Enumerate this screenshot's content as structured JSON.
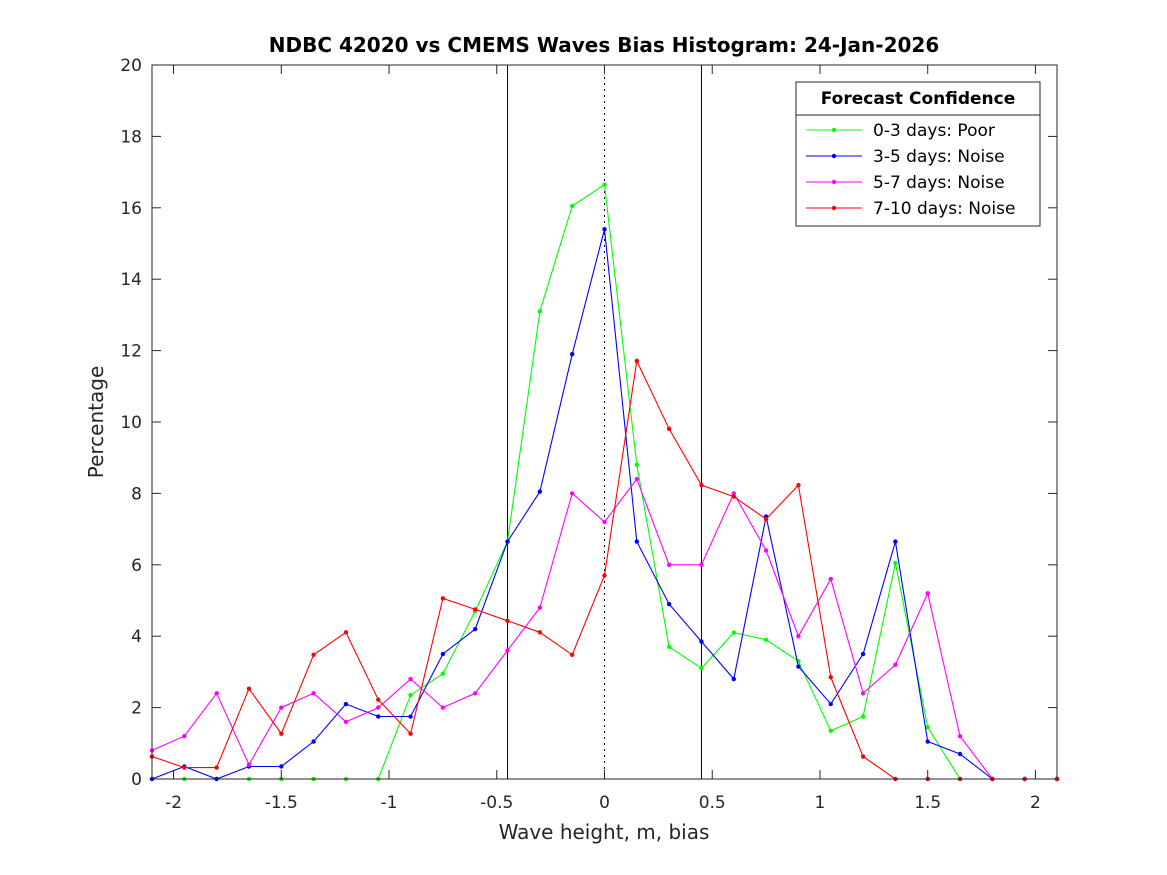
{
  "chart_data": {
    "type": "line",
    "title": "NDBC 42020 vs CMEMS Waves Bias Histogram: 24-Jan-2026",
    "xlabel": "Wave height, m, bias",
    "ylabel": "Percentage",
    "xlim": [
      -2.1,
      2.1
    ],
    "ylim": [
      0,
      20
    ],
    "xticks": [
      -2,
      -1.5,
      -1,
      -0.5,
      0,
      0.5,
      1,
      1.5,
      2
    ],
    "xtick_labels": [
      "-2",
      "-1.5",
      "-1",
      "-0.5",
      "0",
      "0.5",
      "1",
      "1.5",
      "2"
    ],
    "yticks": [
      0,
      2,
      4,
      6,
      8,
      10,
      12,
      14,
      16,
      18,
      20
    ],
    "ytick_labels": [
      "0",
      "2",
      "4",
      "6",
      "8",
      "10",
      "12",
      "14",
      "16",
      "18",
      "20"
    ],
    "grid": false,
    "legend_title": "Forecast Confidence",
    "legend_position": "top-right",
    "reference_lines": [
      {
        "x": -0.45,
        "style": "solid",
        "color": "#000000"
      },
      {
        "x": 0,
        "style": "dotted",
        "color": "#000000"
      },
      {
        "x": 0.45,
        "style": "solid",
        "color": "#000000"
      }
    ],
    "x": [
      -2.1,
      -1.95,
      -1.8,
      -1.65,
      -1.5,
      -1.35,
      -1.2,
      -1.05,
      -0.9,
      -0.75,
      -0.6,
      -0.45,
      -0.3,
      -0.15,
      0,
      0.15,
      0.3,
      0.45,
      0.6,
      0.75,
      0.9,
      1.05,
      1.2,
      1.35,
      1.5,
      1.65,
      1.8,
      1.95,
      2.1
    ],
    "series": [
      {
        "name": "0-3 days: Poor",
        "color": "#00ff00",
        "values": [
          0,
          0,
          0,
          0,
          0,
          0,
          0,
          0,
          2.35,
          2.95,
          4.7,
          6.65,
          13.1,
          16.05,
          16.65,
          8.8,
          3.7,
          3.1,
          4.1,
          3.9,
          3.3,
          1.35,
          1.75,
          6.05,
          1.45,
          0,
          0,
          0,
          0
        ]
      },
      {
        "name": "3-5 days: Noise",
        "color": "#0000ff",
        "values": [
          0,
          0.35,
          0,
          0.35,
          0.35,
          1.05,
          2.1,
          1.75,
          1.75,
          3.5,
          4.2,
          6.65,
          8.05,
          11.9,
          15.4,
          6.65,
          4.9,
          3.85,
          2.8,
          7.35,
          3.15,
          2.1,
          3.5,
          6.65,
          1.05,
          0.7,
          0,
          0,
          0
        ]
      },
      {
        "name": "5-7 days: Noise",
        "color": "#ff00ff",
        "values": [
          0.8,
          1.2,
          2.4,
          0.4,
          2.0,
          2.4,
          1.6,
          2.0,
          2.8,
          2.0,
          2.4,
          3.6,
          4.8,
          8.0,
          7.2,
          8.4,
          6.0,
          6.0,
          8.0,
          6.4,
          4.0,
          5.6,
          2.4,
          3.2,
          5.2,
          1.2,
          0,
          0,
          0
        ]
      },
      {
        "name": "7-10 days: Noise",
        "color": "#ff0000",
        "values": [
          0.63,
          0.32,
          0.32,
          2.53,
          1.27,
          3.48,
          4.11,
          2.22,
          1.27,
          5.06,
          4.75,
          4.43,
          4.11,
          3.48,
          5.7,
          11.71,
          9.81,
          8.23,
          7.91,
          7.28,
          8.23,
          2.85,
          0.63,
          0,
          0,
          0,
          0,
          0,
          0
        ]
      }
    ]
  }
}
